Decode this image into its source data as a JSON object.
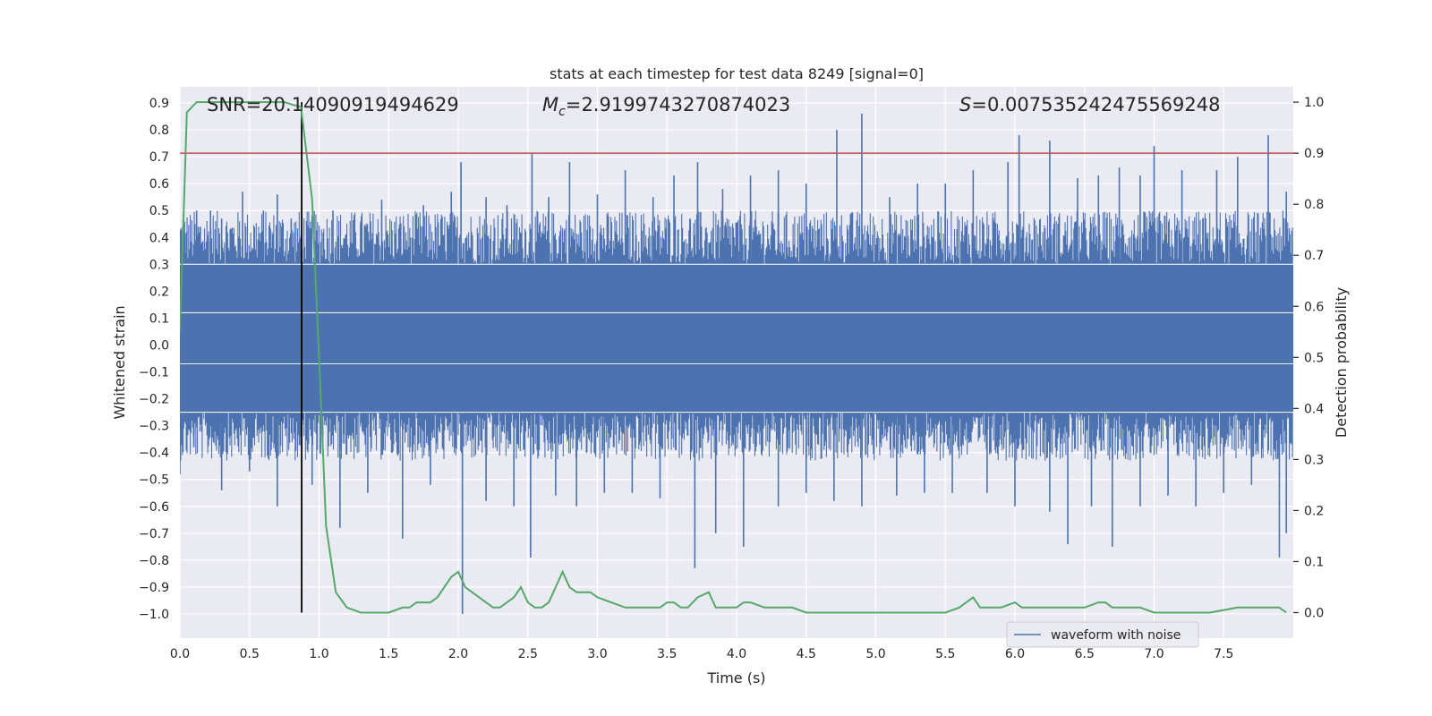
{
  "chart_data": {
    "type": "line",
    "title": "stats at each timestep for test data 8249 [signal=0]",
    "xlabel": "Time (s)",
    "ylabel_left": "Whitened strain",
    "ylabel_right": "Detection probability",
    "xlim": [
      0,
      8
    ],
    "ylim_left": [
      -1.09,
      0.96
    ],
    "ylim_right": [
      -0.05,
      1.03
    ],
    "x_ticks": [
      0.0,
      0.5,
      1.0,
      1.5,
      2.0,
      2.5,
      3.0,
      3.5,
      4.0,
      4.5,
      5.0,
      5.5,
      6.0,
      6.5,
      7.0,
      7.5
    ],
    "x_tick_labels": [
      "0.0",
      "0.5",
      "1.0",
      "1.5",
      "2.0",
      "2.5",
      "3.0",
      "3.5",
      "4.0",
      "4.5",
      "5.0",
      "5.5",
      "6.0",
      "6.5",
      "7.0",
      "7.5"
    ],
    "y_ticks_left": [
      0.9,
      0.8,
      0.7,
      0.6,
      0.5,
      0.4,
      0.3,
      0.2,
      0.1,
      0.0,
      -0.1,
      -0.2,
      -0.3,
      -0.4,
      -0.5,
      -0.6,
      -0.7,
      -0.8,
      -0.9,
      -1.0
    ],
    "y_tick_labels_left": [
      "0.9",
      "0.8",
      "0.7",
      "0.6",
      "0.5",
      "0.4",
      "0.3",
      "0.2",
      "0.1",
      "0.0",
      "−0.1",
      "−0.2",
      "−0.3",
      "−0.4",
      "−0.5",
      "−0.6",
      "−0.7",
      "−0.8",
      "−0.9",
      "−1.0"
    ],
    "y_ticks_right": [
      1.0,
      0.9,
      0.8,
      0.7,
      0.6,
      0.5,
      0.4,
      0.3,
      0.2,
      0.1,
      0.0
    ],
    "y_tick_labels_right": [
      "1.0",
      "0.9",
      "0.8",
      "0.7",
      "0.6",
      "0.5",
      "0.4",
      "0.3",
      "0.2",
      "0.1",
      "0.0"
    ],
    "grid": true,
    "legend": {
      "placement": "lower-right",
      "entries": [
        {
          "label": "waveform with noise",
          "color": "#4c72b0"
        }
      ]
    },
    "annotations": {
      "snr": {
        "label": "SNR",
        "value": "20.14090919494629",
        "text": "SNR=20.14090919494629"
      },
      "mc": {
        "label": "M",
        "subscript": "c",
        "value": "2.9199743270874023"
      },
      "s": {
        "label": "S",
        "value": "0.007535242475569248"
      }
    },
    "threshold_line": {
      "axis": "right",
      "y": 0.9,
      "color": "#c44e52"
    },
    "marker_line": {
      "x": 0.875,
      "color": "#000000"
    },
    "waveform": {
      "name": "waveform with noise",
      "color": "#4c72b0",
      "core_band": [
        -0.25,
        0.3
      ],
      "spikes_up": [
        [
          0.0,
          0.38
        ],
        [
          0.05,
          0.42
        ],
        [
          0.12,
          0.5
        ],
        [
          0.22,
          0.5
        ],
        [
          0.3,
          0.47
        ],
        [
          0.45,
          0.57
        ],
        [
          0.6,
          0.5
        ],
        [
          0.7,
          0.56
        ],
        [
          0.8,
          0.47
        ],
        [
          1.1,
          0.5
        ],
        [
          1.3,
          0.46
        ],
        [
          1.45,
          0.54
        ],
        [
          1.75,
          0.52
        ],
        [
          1.95,
          0.57
        ],
        [
          2.02,
          0.68
        ],
        [
          2.2,
          0.55
        ],
        [
          2.35,
          0.52
        ],
        [
          2.53,
          0.71
        ],
        [
          2.65,
          0.55
        ],
        [
          2.8,
          0.68
        ],
        [
          3.0,
          0.56
        ],
        [
          3.2,
          0.65
        ],
        [
          3.4,
          0.55
        ],
        [
          3.55,
          0.63
        ],
        [
          3.72,
          0.68
        ],
        [
          3.9,
          0.58
        ],
        [
          4.1,
          0.63
        ],
        [
          4.3,
          0.65
        ],
        [
          4.5,
          0.6
        ],
        [
          4.72,
          0.8
        ],
        [
          4.9,
          0.86
        ],
        [
          5.1,
          0.55
        ],
        [
          5.3,
          0.6
        ],
        [
          5.5,
          0.6
        ],
        [
          5.7,
          0.65
        ],
        [
          5.95,
          0.68
        ],
        [
          6.03,
          0.78
        ],
        [
          6.25,
          0.76
        ],
        [
          6.45,
          0.62
        ],
        [
          6.6,
          0.63
        ],
        [
          6.75,
          0.66
        ],
        [
          6.9,
          0.63
        ],
        [
          7.0,
          0.74
        ],
        [
          7.2,
          0.65
        ],
        [
          7.45,
          0.65
        ],
        [
          7.6,
          0.7
        ],
        [
          7.82,
          0.78
        ],
        [
          7.95,
          0.57
        ]
      ],
      "spikes_down": [
        [
          0.0,
          -0.48
        ],
        [
          0.1,
          -0.38
        ],
        [
          0.3,
          -0.54
        ],
        [
          0.5,
          -0.47
        ],
        [
          0.7,
          -0.6
        ],
        [
          0.95,
          -0.52
        ],
        [
          1.15,
          -0.68
        ],
        [
          1.35,
          -0.55
        ],
        [
          1.6,
          -0.72
        ],
        [
          1.8,
          -0.52
        ],
        [
          2.03,
          -1.0
        ],
        [
          2.2,
          -0.58
        ],
        [
          2.4,
          -0.6
        ],
        [
          2.52,
          -0.79
        ],
        [
          2.7,
          -0.56
        ],
        [
          2.85,
          -0.6
        ],
        [
          3.05,
          -0.55
        ],
        [
          3.25,
          -0.55
        ],
        [
          3.45,
          -0.57
        ],
        [
          3.7,
          -0.83
        ],
        [
          3.85,
          -0.7
        ],
        [
          4.05,
          -0.75
        ],
        [
          4.3,
          -0.6
        ],
        [
          4.5,
          -0.55
        ],
        [
          4.7,
          -0.58
        ],
        [
          4.9,
          -0.6
        ],
        [
          5.15,
          -0.56
        ],
        [
          5.35,
          -0.55
        ],
        [
          5.55,
          -0.55
        ],
        [
          5.8,
          -0.55
        ],
        [
          6.0,
          -0.6
        ],
        [
          6.25,
          -0.62
        ],
        [
          6.38,
          -0.74
        ],
        [
          6.55,
          -0.6
        ],
        [
          6.7,
          -0.75
        ],
        [
          6.9,
          -0.6
        ],
        [
          7.1,
          -0.56
        ],
        [
          7.3,
          -0.6
        ],
        [
          7.5,
          -0.55
        ],
        [
          7.7,
          -0.52
        ],
        [
          7.9,
          -0.79
        ],
        [
          7.95,
          -0.7
        ]
      ]
    },
    "probability": {
      "name": "detection probability",
      "color": "#55a868",
      "x": [
        0.0,
        0.05,
        0.12,
        0.2,
        0.5,
        0.75,
        0.87,
        0.95,
        1.0,
        1.05,
        1.12,
        1.2,
        1.3,
        1.5,
        1.6,
        1.65,
        1.7,
        1.8,
        1.85,
        1.95,
        2.0,
        2.05,
        2.1,
        2.2,
        2.25,
        2.3,
        2.35,
        2.4,
        2.45,
        2.5,
        2.55,
        2.6,
        2.65,
        2.7,
        2.75,
        2.8,
        2.85,
        2.9,
        2.95,
        3.0,
        3.1,
        3.2,
        3.35,
        3.45,
        3.5,
        3.55,
        3.6,
        3.65,
        3.72,
        3.8,
        3.85,
        3.9,
        4.0,
        4.05,
        4.1,
        4.2,
        4.3,
        4.4,
        4.5,
        4.6,
        4.7,
        4.8,
        4.9,
        5.0,
        5.1,
        5.2,
        5.3,
        5.4,
        5.5,
        5.6,
        5.65,
        5.7,
        5.75,
        5.8,
        5.85,
        5.9,
        6.0,
        6.05,
        6.1,
        6.2,
        6.3,
        6.4,
        6.5,
        6.6,
        6.65,
        6.7,
        6.8,
        6.9,
        7.0,
        7.2,
        7.4,
        7.6,
        7.7,
        7.8,
        7.9,
        7.95
      ],
      "y": [
        0.55,
        0.98,
        1.0,
        1.0,
        1.0,
        1.0,
        0.99,
        0.81,
        0.5,
        0.17,
        0.04,
        0.01,
        0.0,
        0.0,
        0.01,
        0.01,
        0.02,
        0.02,
        0.03,
        0.07,
        0.08,
        0.05,
        0.04,
        0.02,
        0.01,
        0.01,
        0.02,
        0.03,
        0.05,
        0.02,
        0.01,
        0.01,
        0.02,
        0.05,
        0.08,
        0.05,
        0.04,
        0.04,
        0.04,
        0.03,
        0.02,
        0.01,
        0.01,
        0.01,
        0.02,
        0.02,
        0.01,
        0.01,
        0.03,
        0.04,
        0.01,
        0.01,
        0.01,
        0.02,
        0.02,
        0.01,
        0.01,
        0.01,
        0.0,
        0.0,
        0.0,
        0.0,
        0.0,
        0.0,
        0.0,
        0.0,
        0.0,
        0.0,
        0.0,
        0.01,
        0.02,
        0.03,
        0.01,
        0.01,
        0.01,
        0.01,
        0.02,
        0.01,
        0.01,
        0.01,
        0.01,
        0.01,
        0.01,
        0.02,
        0.02,
        0.01,
        0.01,
        0.01,
        0.0,
        0.0,
        0.0,
        0.01,
        0.01,
        0.01,
        0.01,
        0.0
      ]
    }
  }
}
